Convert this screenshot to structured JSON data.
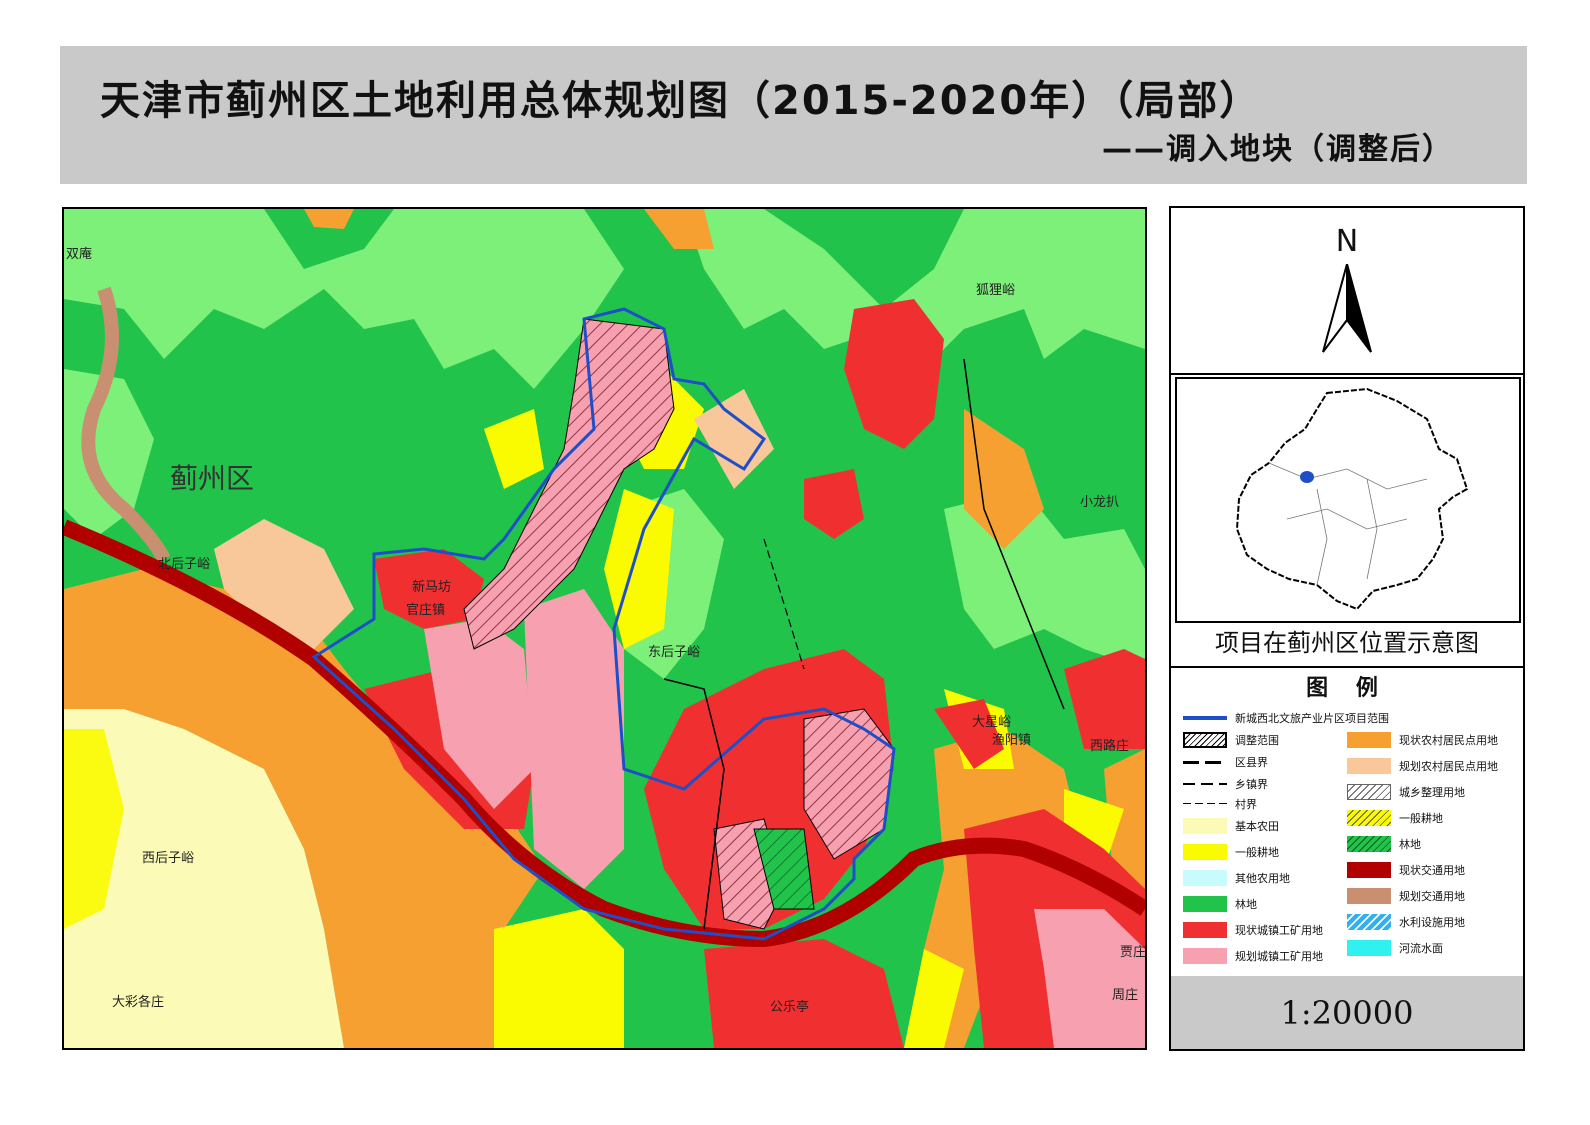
{
  "title": {
    "main": "天津市蓟州区土地利用总体规划图（2015-2020年）（局部）",
    "sub": "——调入地块（调整后）"
  },
  "north_arrow": {
    "label": "N",
    "icon": "north-arrow-icon"
  },
  "place_names": {
    "shuangan": "双庵",
    "hulianyu": "狐狸峪",
    "jizhouqu": "蓟州区",
    "xiaolongba": "小龙扒",
    "beihouziyu": "北后子峪",
    "xinmafang": "新马坊",
    "guanzhuangzhen": "官庄镇",
    "donghouziyu": "东后子峪",
    "daxingyu": "大星峪",
    "yuyangzhen": "渔阳镇",
    "xiluzhuang": "西路庄",
    "xihouziyu": "西后子峪",
    "dacaigezhuang": "大彩各庄",
    "gongleting": "公乐亭",
    "guzhuang": "贾庄",
    "zhouzhuang": "周庄"
  },
  "inset": {
    "caption": "项目在蓟州区位置示意图"
  },
  "legend": {
    "title": "图 例",
    "project_boundary": "新城西北文旅产业片区项目范围",
    "left": [
      {
        "label": "调整范围",
        "kind": "hatch"
      },
      {
        "label": "区县界",
        "kind": "line-dash"
      },
      {
        "label": "乡镇界",
        "kind": "line-dash2"
      },
      {
        "label": "村界",
        "kind": "line-dash3"
      },
      {
        "label": "基本农田",
        "kind": "fill",
        "color": "#fbfbb7"
      },
      {
        "label": "一般耕地",
        "kind": "fill",
        "color": "#fbfb00"
      },
      {
        "label": "其他农用地",
        "kind": "fill",
        "color": "#c8fbfb"
      },
      {
        "label": "林地",
        "kind": "fill",
        "color": "#22c34a"
      },
      {
        "label": "现状城镇工矿用地",
        "kind": "fill",
        "color": "#f03030"
      },
      {
        "label": "规划城镇工矿用地",
        "kind": "fill",
        "color": "#f7a0b0"
      }
    ],
    "right": [
      {
        "label": "现状农村居民点用地",
        "kind": "fill",
        "color": "#f5a030"
      },
      {
        "label": "规划农村居民点用地",
        "kind": "fill",
        "color": "#f8c79a"
      },
      {
        "label": "城乡整理用地",
        "kind": "hatch-white"
      },
      {
        "label": "一般耕地",
        "kind": "hatch-yellow"
      },
      {
        "label": "林地",
        "kind": "hatch-green"
      },
      {
        "label": "现状交通用地",
        "kind": "fill",
        "color": "#b00000"
      },
      {
        "label": "规划交通用地",
        "kind": "fill",
        "color": "#c89070"
      },
      {
        "label": "水利设施用地",
        "kind": "hatch-blue"
      },
      {
        "label": "河流水面",
        "kind": "fill",
        "color": "#30f0f0"
      }
    ]
  },
  "scale": {
    "text": "1:20000"
  },
  "colors": {
    "forest": "#22c34a",
    "forest_light": "#7df07a",
    "urban_existing": "#f03030",
    "urban_planned": "#f7a0b0",
    "rural_existing": "#f5a030",
    "rural_planned": "#f8c79a",
    "farmland_basic": "#fbfbb7",
    "farmland_general": "#fbfb00",
    "transport_existing": "#b00000",
    "transport_planned": "#c89070",
    "project_boundary": "#1f4fc8"
  }
}
